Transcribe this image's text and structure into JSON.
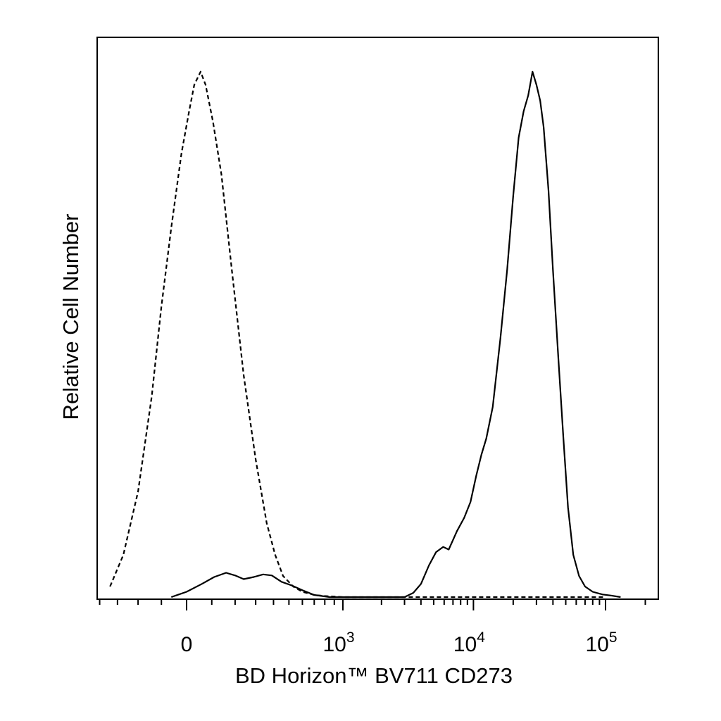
{
  "chart_data": {
    "type": "area",
    "title": "",
    "xlabel": "BD Horizon™ BV711 CD273",
    "ylabel": "Relative Cell Number",
    "x_scale": "biexponential",
    "xlim": [
      -400,
      250000
    ],
    "ylim": [
      0,
      100
    ],
    "ticks": [
      {
        "value": 0,
        "label": "0"
      },
      {
        "value": 1000,
        "label": "10",
        "exp": "3"
      },
      {
        "value": 10000,
        "label": "10",
        "exp": "4"
      },
      {
        "value": 100000,
        "label": "10",
        "exp": "5"
      }
    ],
    "grid": false,
    "legend": "none",
    "series": [
      {
        "style": "dashed",
        "points": [
          [
            -340,
            2
          ],
          [
            -270,
            8
          ],
          [
            -200,
            20
          ],
          [
            -140,
            38
          ],
          [
            -100,
            55
          ],
          [
            -60,
            70
          ],
          [
            -20,
            84
          ],
          [
            10,
            92
          ],
          [
            30,
            97
          ],
          [
            55,
            99.5
          ],
          [
            75,
            97
          ],
          [
            105,
            90
          ],
          [
            140,
            80
          ],
          [
            185,
            62
          ],
          [
            240,
            42
          ],
          [
            300,
            26
          ],
          [
            360,
            14
          ],
          [
            410,
            8
          ],
          [
            460,
            4
          ],
          [
            530,
            2
          ],
          [
            600,
            1
          ],
          [
            700,
            0.4
          ],
          [
            800,
            0.2
          ],
          [
            1000,
            0
          ],
          [
            100000,
            0
          ]
        ]
      },
      {
        "style": "solid",
        "points": [
          [
            -60,
            0
          ],
          [
            0,
            1
          ],
          [
            60,
            2.5
          ],
          [
            110,
            3.8
          ],
          [
            160,
            4.6
          ],
          [
            200,
            4.1
          ],
          [
            240,
            3.4
          ],
          [
            290,
            3.8
          ],
          [
            340,
            4.3
          ],
          [
            390,
            4.1
          ],
          [
            450,
            2.9
          ],
          [
            520,
            2.2
          ],
          [
            600,
            1.3
          ],
          [
            700,
            0.4
          ],
          [
            850,
            0
          ],
          [
            3000,
            0
          ],
          [
            3500,
            0.8
          ],
          [
            4000,
            2.5
          ],
          [
            4600,
            6
          ],
          [
            5200,
            8.5
          ],
          [
            5900,
            9.5
          ],
          [
            6500,
            9
          ],
          [
            7500,
            12.5
          ],
          [
            8500,
            15
          ],
          [
            9500,
            18
          ],
          [
            10500,
            23
          ],
          [
            11500,
            27
          ],
          [
            12500,
            30
          ],
          [
            14000,
            36
          ],
          [
            16000,
            49
          ],
          [
            18000,
            62
          ],
          [
            20000,
            76
          ],
          [
            22000,
            87
          ],
          [
            24000,
            92
          ],
          [
            26000,
            95
          ],
          [
            28000,
            99.5
          ],
          [
            30000,
            97
          ],
          [
            32000,
            94
          ],
          [
            34000,
            89
          ],
          [
            37000,
            77
          ],
          [
            40000,
            62
          ],
          [
            44000,
            45
          ],
          [
            48000,
            30
          ],
          [
            52000,
            17
          ],
          [
            57000,
            8
          ],
          [
            63000,
            4
          ],
          [
            70000,
            2
          ],
          [
            80000,
            1
          ],
          [
            95000,
            0.5
          ],
          [
            110000,
            0.3
          ],
          [
            130000,
            0
          ]
        ]
      }
    ]
  }
}
